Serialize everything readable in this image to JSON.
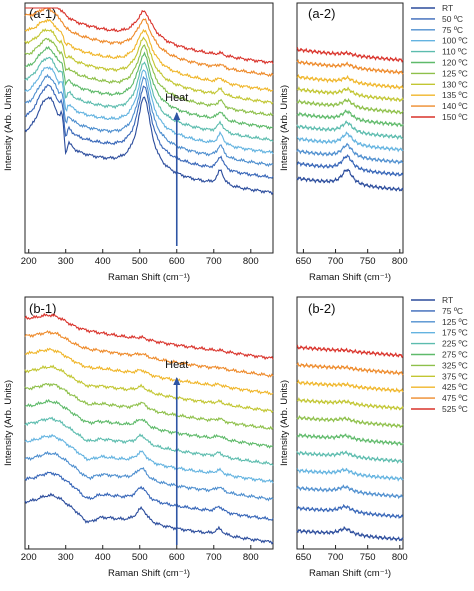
{
  "chart_data": [
    {
      "type": "line",
      "panel_label": "(a-1)",
      "xlabel": "Raman Shift (cm⁻¹)",
      "ylabel": "Intensity (Arb. Units)",
      "xlim": [
        190,
        860
      ],
      "x_ticks": [
        200,
        300,
        400,
        500,
        600,
        700,
        800
      ],
      "annotation": "Heat",
      "arrow_x": 600,
      "series": [
        {
          "name": "RT",
          "color": "#2b4c9c",
          "offset": 0.1
        },
        {
          "name": "50 ºC",
          "color": "#3766b8",
          "offset": 0.16
        },
        {
          "name": "75 ºC",
          "color": "#4f8fcf",
          "offset": 0.21
        },
        {
          "name": "100 ºC",
          "color": "#63b3e0",
          "offset": 0.26
        },
        {
          "name": "110 ºC",
          "color": "#5cbcae",
          "offset": 0.31
        },
        {
          "name": "120 ºC",
          "color": "#5fba6a",
          "offset": 0.36
        },
        {
          "name": "125 ºC",
          "color": "#8ec04a",
          "offset": 0.41
        },
        {
          "name": "130 ºC",
          "color": "#c2c632",
          "offset": 0.46
        },
        {
          "name": "135 ºC",
          "color": "#f0b62a",
          "offset": 0.51
        },
        {
          "name": "140 ºC",
          "color": "#ee8a2a",
          "offset": 0.57
        },
        {
          "name": "150 ºC",
          "color": "#d9322a",
          "offset": 0.62
        }
      ]
    },
    {
      "type": "line",
      "panel_label": "(a-2)",
      "xlabel": "Raman Shift (cm⁻¹)",
      "xlim": [
        640,
        805
      ],
      "x_ticks": [
        650,
        700,
        750,
        800
      ]
    },
    {
      "type": "line",
      "panel_label": "(b-1)",
      "xlabel": "Raman Shift (cm⁻¹)",
      "ylabel": "Intensity (Arb. Units)",
      "xlim": [
        190,
        860
      ],
      "x_ticks": [
        200,
        300,
        400,
        500,
        600,
        700,
        800
      ],
      "annotation": "Heat",
      "arrow_x": 600,
      "series": [
        {
          "name": "RT",
          "color": "#2b4c9c",
          "offset": 0.04
        },
        {
          "name": "75 ºC",
          "color": "#3766b8",
          "offset": 0.13
        },
        {
          "name": "125 ºC",
          "color": "#4f8fcf",
          "offset": 0.21
        },
        {
          "name": "175 ºC",
          "color": "#63b3e0",
          "offset": 0.28
        },
        {
          "name": "225 ºC",
          "color": "#5cbcae",
          "offset": 0.35
        },
        {
          "name": "275 ºC",
          "color": "#5fba6a",
          "offset": 0.42
        },
        {
          "name": "325 ºC",
          "color": "#8ec04a",
          "offset": 0.49
        },
        {
          "name": "375 ºC",
          "color": "#c2c632",
          "offset": 0.56
        },
        {
          "name": "425 ºC",
          "color": "#f0b62a",
          "offset": 0.63
        },
        {
          "name": "475 ºC",
          "color": "#ee8a2a",
          "offset": 0.7
        },
        {
          "name": "525 ºC",
          "color": "#d9322a",
          "offset": 0.77
        }
      ]
    },
    {
      "type": "line",
      "panel_label": "(b-2)",
      "xlabel": "Raman Shift (cm⁻¹)",
      "xlim": [
        640,
        805
      ],
      "x_ticks": [
        650,
        700,
        750,
        800
      ]
    }
  ]
}
